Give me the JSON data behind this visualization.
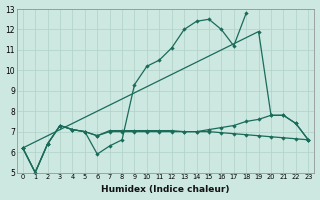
{
  "xlabel": "Humidex (Indice chaleur)",
  "bg_color": "#cce8e0",
  "grid_color": "#b0d0c8",
  "line_color": "#1a6b5a",
  "xlim": [
    -0.5,
    23.5
  ],
  "ylim": [
    5,
    13
  ],
  "xticks": [
    0,
    1,
    2,
    3,
    4,
    5,
    6,
    7,
    8,
    9,
    10,
    11,
    12,
    13,
    14,
    15,
    16,
    17,
    18,
    19,
    20,
    21,
    22,
    23
  ],
  "yticks": [
    5,
    6,
    7,
    8,
    9,
    10,
    11,
    12,
    13
  ],
  "line1_x": [
    0,
    1,
    2,
    3,
    4,
    5,
    6,
    7,
    8,
    9,
    10,
    11,
    12,
    13,
    14,
    15,
    16,
    17,
    18
  ],
  "line1_y": [
    6.2,
    5.0,
    6.4,
    7.3,
    7.1,
    7.0,
    5.9,
    6.3,
    6.6,
    9.3,
    10.2,
    10.5,
    11.1,
    12.0,
    12.4,
    12.5,
    12.0,
    11.2,
    12.8
  ],
  "line2_x": [
    0,
    1,
    2,
    3,
    4,
    5,
    6,
    7,
    8,
    9,
    10,
    11,
    12,
    13,
    14,
    15,
    16,
    17,
    18,
    19,
    20,
    21,
    22,
    23
  ],
  "line2_y": [
    6.2,
    5.0,
    6.4,
    7.3,
    7.1,
    7.0,
    6.8,
    7.05,
    7.05,
    7.05,
    7.05,
    7.05,
    7.05,
    7.0,
    7.0,
    7.0,
    6.95,
    6.9,
    6.85,
    6.8,
    6.75,
    6.7,
    6.65,
    6.6
  ],
  "line3_x": [
    0,
    19,
    20,
    21,
    22,
    23
  ],
  "line3_y": [
    6.2,
    11.9,
    7.8,
    7.8,
    7.4,
    6.6
  ],
  "line4_x": [
    0,
    1,
    2,
    3,
    4,
    5,
    6,
    7,
    8,
    9,
    10,
    11,
    12,
    13,
    14,
    15,
    16,
    17,
    18,
    19,
    20,
    21,
    22,
    23
  ],
  "line4_y": [
    6.2,
    5.0,
    6.4,
    7.3,
    7.1,
    7.0,
    6.8,
    7.0,
    7.0,
    7.0,
    7.0,
    7.0,
    7.0,
    7.0,
    7.0,
    7.1,
    7.2,
    7.3,
    7.5,
    7.6,
    7.8,
    7.8,
    7.4,
    6.6
  ]
}
